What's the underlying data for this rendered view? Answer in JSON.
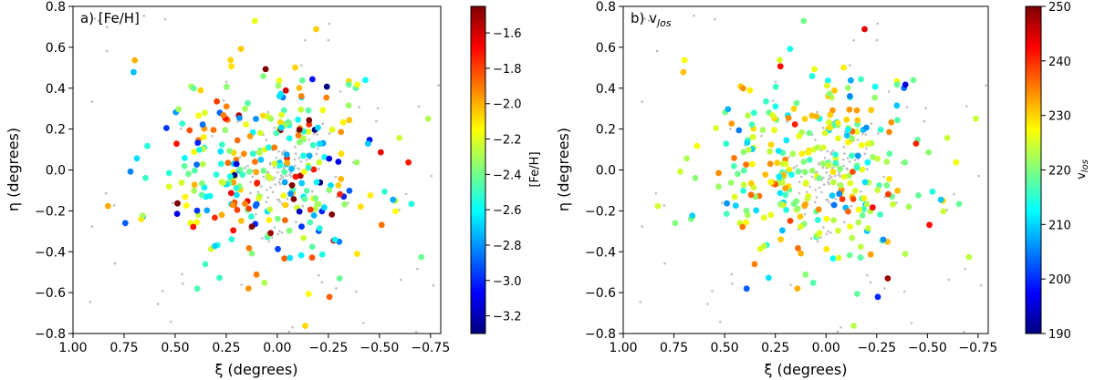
{
  "chart_data": [
    {
      "type": "scatter",
      "panel_label": "a) [Fe/H]",
      "xlabel": "ξ (degrees)",
      "ylabel": "η (degrees)",
      "xlim": [
        1.0,
        -0.8
      ],
      "ylim": [
        -0.8,
        0.8
      ],
      "xticks": [
        "1.00",
        "0.75",
        "0.50",
        "0.25",
        "0.00",
        "−0.25",
        "−0.50",
        "−0.75"
      ],
      "yticks": [
        "0.8",
        "0.6",
        "0.4",
        "0.2",
        "0.0",
        "−0.2",
        "−0.4",
        "−0.6",
        "−0.8"
      ],
      "colorbar": {
        "label": "[Fe/H]",
        "range": [
          -3.3,
          -1.45
        ],
        "ticks": [
          "−1.6",
          "−1.8",
          "−2.0",
          "−2.2",
          "−2.4",
          "−2.6",
          "−2.8",
          "−3.0",
          "−3.2"
        ]
      },
      "colored_points_count": 320,
      "background_points_count": 180
    },
    {
      "type": "scatter",
      "panel_label": "b) v",
      "panel_label_sub": "los",
      "xlabel": "ξ (degrees)",
      "ylabel": "η (degrees)",
      "xlim": [
        1.0,
        -0.8
      ],
      "ylim": [
        -0.8,
        0.8
      ],
      "xticks": [
        "1.00",
        "0.75",
        "0.50",
        "0.25",
        "0.00",
        "−0.25",
        "−0.50",
        "−0.75"
      ],
      "yticks": [
        "0.8",
        "0.6",
        "0.4",
        "0.2",
        "0.0",
        "−0.2",
        "−0.4",
        "−0.6",
        "−0.8"
      ],
      "colorbar": {
        "label": "v",
        "label_sub": "los",
        "range": [
          190,
          250
        ],
        "ticks": [
          "250",
          "240",
          "230",
          "220",
          "210",
          "200",
          "190"
        ]
      },
      "colored_points_count": 320,
      "background_points_count": 180
    }
  ]
}
